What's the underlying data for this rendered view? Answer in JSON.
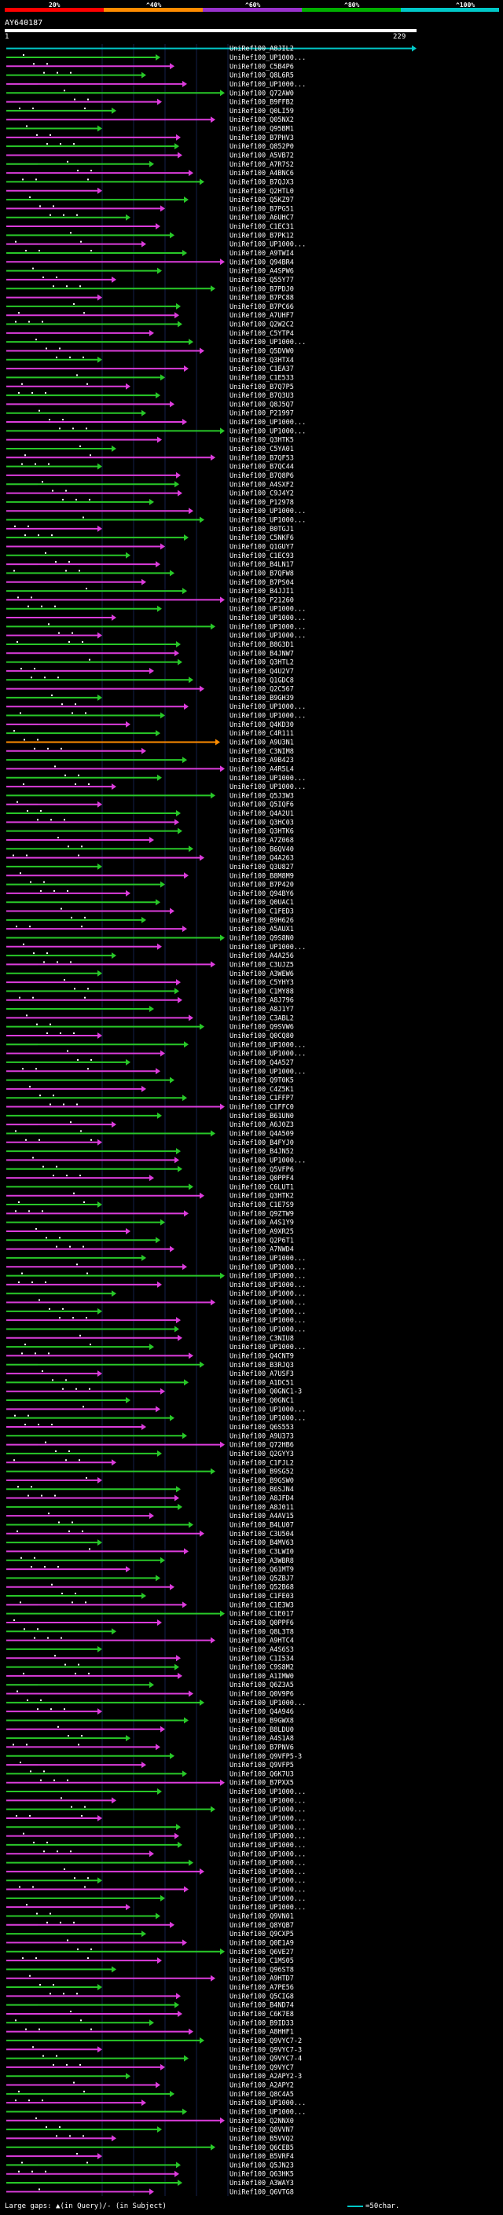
{
  "scale": {
    "labels": [
      "20%",
      "^40%",
      "^60%",
      "^80%",
      "^100%"
    ],
    "colors": [
      "#ff0000",
      "#ff8c00",
      "#9932cc",
      "#00b000",
      "#00c8c8"
    ]
  },
  "query": {
    "id": "AY640187",
    "start": "1",
    "end": "229"
  },
  "colors": {
    "green": "#28c828",
    "magenta": "#dc3cdc",
    "orange": "#ff8c00",
    "cyan": "#00c8c8",
    "dark": "#2a2a2a",
    "grid": "#15204a"
  },
  "hits": [
    {
      "id": "UniRef100_A8JIL2",
      "color": "cyan"
    },
    {
      "id": "UniRef100_UP1000...",
      "color": "green"
    },
    {
      "id": "UniRef100_C5B4P6",
      "color": "magenta"
    },
    {
      "id": "UniRef100_Q8L6R5",
      "color": "green"
    },
    {
      "id": "UniRef100_UP1000...",
      "color": "magenta"
    },
    {
      "id": "UniRef100_Q72AW0",
      "color": "green"
    },
    {
      "id": "UniRef100_B9FFB2",
      "color": "magenta"
    },
    {
      "id": "UniRef100_Q0LI59",
      "color": "green"
    },
    {
      "id": "UniRef100_Q05NX2",
      "color": "magenta"
    },
    {
      "id": "UniRef100_Q95BM1",
      "color": "green"
    },
    {
      "id": "UniRef100_B7PHV3",
      "color": "magenta"
    },
    {
      "id": "UniRef100_Q852P0",
      "color": "green"
    },
    {
      "id": "UniRef100_A5VB72",
      "color": "magenta"
    },
    {
      "id": "UniRef100_A7R7S2",
      "color": "green"
    },
    {
      "id": "UniRef100_A4BNC6",
      "color": "magenta"
    },
    {
      "id": "UniRef100_B7QJX3",
      "color": "green"
    },
    {
      "id": "UniRef100_Q2HTL0",
      "color": "magenta"
    },
    {
      "id": "UniRef100_Q5KZ97",
      "color": "green"
    },
    {
      "id": "UniRef100_B7PG51",
      "color": "magenta"
    },
    {
      "id": "UniRef100_A6UHC7",
      "color": "green"
    },
    {
      "id": "UniRef100_C1EC31",
      "color": "magenta"
    },
    {
      "id": "UniRef100_B7PK12",
      "color": "green"
    },
    {
      "id": "UniRef100_UP1000...",
      "color": "magenta"
    },
    {
      "id": "UniRef100_A9TWI4",
      "color": "green"
    },
    {
      "id": "UniRef100_Q94BR4",
      "color": "magenta"
    },
    {
      "id": "UniRef100_A4SPW6",
      "color": "green"
    },
    {
      "id": "UniRef100_Q55Y77",
      "color": "magenta"
    },
    {
      "id": "UniRef100_B7PDJ0",
      "color": "green"
    },
    {
      "id": "UniRef100_B7PC88",
      "color": "magenta"
    },
    {
      "id": "UniRef100_B7PC66",
      "color": "green"
    },
    {
      "id": "UniRef100_A7UHF7",
      "color": "magenta"
    },
    {
      "id": "UniRef100_Q2W2C2",
      "color": "green"
    },
    {
      "id": "UniRef100_C5YTP4",
      "color": "magenta"
    },
    {
      "id": "UniRef100_UP1000...",
      "color": "green"
    },
    {
      "id": "UniRef100_Q5DVW0",
      "color": "magenta"
    },
    {
      "id": "UniRef100_Q3HTX4",
      "color": "green"
    },
    {
      "id": "UniRef100_C1EA37",
      "color": "magenta"
    },
    {
      "id": "UniRef100_C1E533",
      "color": "green"
    },
    {
      "id": "UniRef100_B7Q7P5",
      "color": "magenta"
    },
    {
      "id": "UniRef100_B7Q3U3",
      "color": "green"
    },
    {
      "id": "UniRef100_Q8J5Q7",
      "color": "magenta"
    },
    {
      "id": "UniRef100_P21997",
      "color": "green"
    },
    {
      "id": "UniRef100_UP1000...",
      "color": "magenta"
    },
    {
      "id": "UniRef100_UP1000...",
      "color": "green"
    },
    {
      "id": "UniRef100_Q3HTK5",
      "color": "magenta"
    },
    {
      "id": "UniRef100_C5YA01",
      "color": "green"
    },
    {
      "id": "UniRef100_B7QF53",
      "color": "magenta"
    },
    {
      "id": "UniRef100_B7QC44",
      "color": "green"
    },
    {
      "id": "UniRef100_B7Q8P6",
      "color": "magenta"
    },
    {
      "id": "UniRef100_A4SXF2",
      "color": "green"
    },
    {
      "id": "UniRef100_C9J4Y2",
      "color": "magenta"
    },
    {
      "id": "UniRef100_P12978",
      "color": "green"
    },
    {
      "id": "UniRef100_UP1000...",
      "color": "magenta"
    },
    {
      "id": "UniRef100_UP1000...",
      "color": "green"
    },
    {
      "id": "UniRef100_B0TGJ1",
      "color": "magenta"
    },
    {
      "id": "UniRef100_C5NKF6",
      "color": "green"
    },
    {
      "id": "UniRef100_Q1GUY7",
      "color": "magenta"
    },
    {
      "id": "UniRef100_C1EC93",
      "color": "green"
    },
    {
      "id": "UniRef100_B4LN17",
      "color": "magenta"
    },
    {
      "id": "UniRef100_B7QFW8",
      "color": "green"
    },
    {
      "id": "UniRef100_B7PS04",
      "color": "magenta"
    },
    {
      "id": "UniRef100_B4JJI1",
      "color": "green"
    },
    {
      "id": "UniRef100_P21260",
      "color": "magenta"
    },
    {
      "id": "UniRef100_UP1000...",
      "color": "green"
    },
    {
      "id": "UniRef100_UP1000...",
      "color": "magenta"
    },
    {
      "id": "UniRef100_UP1000...",
      "color": "green"
    },
    {
      "id": "UniRef100_UP1000...",
      "color": "magenta"
    },
    {
      "id": "UniRef100_B8G3D1",
      "color": "green"
    },
    {
      "id": "UniRef100_B4JNW7",
      "color": "magenta"
    },
    {
      "id": "UniRef100_Q3HTL2",
      "color": "green"
    },
    {
      "id": "UniRef100_Q4U2V7",
      "color": "magenta"
    },
    {
      "id": "UniRef100_Q1GDC8",
      "color": "green"
    },
    {
      "id": "UniRef100_Q2C567",
      "color": "magenta"
    },
    {
      "id": "UniRef100_B9GH39",
      "color": "green"
    },
    {
      "id": "UniRef100_UP1000...",
      "color": "magenta"
    },
    {
      "id": "UniRef100_UP1000...",
      "color": "green"
    },
    {
      "id": "UniRef100_Q4KD30",
      "color": "magenta"
    },
    {
      "id": "UniRef100_C4R111",
      "color": "green"
    },
    {
      "id": "UniRef100_A9U3N1",
      "color": "orange"
    },
    {
      "id": "UniRef100_C3NIM8",
      "color": "magenta"
    },
    {
      "id": "UniRef100_A9B423",
      "color": "green"
    },
    {
      "id": "UniRef100_A4R5L4",
      "color": "magenta"
    },
    {
      "id": "UniRef100_UP1000...",
      "color": "green"
    },
    {
      "id": "UniRef100_UP1000...",
      "color": "magenta"
    },
    {
      "id": "UniRef100_Q5J3W3",
      "color": "green"
    },
    {
      "id": "UniRef100_Q5IQF6",
      "color": "magenta"
    },
    {
      "id": "UniRef100_Q4A2U1",
      "color": "green"
    },
    {
      "id": "UniRef100_Q3HC03",
      "color": "magenta"
    },
    {
      "id": "UniRef100_Q3HTK6",
      "color": "green"
    },
    {
      "id": "UniRef100_A7Z068",
      "color": "magenta"
    },
    {
      "id": "UniRef100_B6QV40",
      "color": "green"
    },
    {
      "id": "UniRef100_Q4A263",
      "color": "magenta"
    },
    {
      "id": "UniRef100_Q3U827",
      "color": "green"
    },
    {
      "id": "UniRef100_B8M8M9",
      "color": "magenta"
    },
    {
      "id": "UniRef100_B7P420",
      "color": "green"
    },
    {
      "id": "UniRef100_Q94BY6",
      "color": "magenta"
    },
    {
      "id": "UniRef100_Q0UAC1",
      "color": "green"
    },
    {
      "id": "UniRef100_C1FED3",
      "color": "magenta"
    },
    {
      "id": "UniRef100_B9H626",
      "color": "green"
    },
    {
      "id": "UniRef100_A5AUX1",
      "color": "magenta"
    },
    {
      "id": "UniRef100_Q9S8N0",
      "color": "green"
    },
    {
      "id": "UniRef100_UP1000...",
      "color": "magenta"
    },
    {
      "id": "UniRef100_A4A256",
      "color": "green"
    },
    {
      "id": "UniRef100_C3UJZ5",
      "color": "magenta"
    },
    {
      "id": "UniRef100_A3WEW6",
      "color": "green"
    },
    {
      "id": "UniRef100_C5YHY3",
      "color": "magenta"
    },
    {
      "id": "UniRef100_C1MY88",
      "color": "green"
    },
    {
      "id": "UniRef100_A8J796",
      "color": "magenta"
    },
    {
      "id": "UniRef100_A8J1Y7",
      "color": "green"
    },
    {
      "id": "UniRef100_C3ABL2",
      "color": "magenta"
    },
    {
      "id": "UniRef100_Q9SVW6",
      "color": "green"
    },
    {
      "id": "UniRef100_Q0CQ80",
      "color": "magenta"
    },
    {
      "id": "UniRef100_UP1000...",
      "color": "green"
    },
    {
      "id": "UniRef100_UP1000...",
      "color": "magenta"
    },
    {
      "id": "UniRef100_Q4A527",
      "color": "green"
    },
    {
      "id": "UniRef100_UP1000...",
      "color": "magenta"
    },
    {
      "id": "UniRef100_Q9T0K5",
      "color": "green"
    },
    {
      "id": "UniRef100_C4Z5K1",
      "color": "magenta"
    },
    {
      "id": "UniRef100_C1FFP7",
      "color": "green"
    },
    {
      "id": "UniRef100_C1FFC0",
      "color": "magenta"
    },
    {
      "id": "UniRef100_B61UN0",
      "color": "green"
    },
    {
      "id": "UniRef100_A6J0Z3",
      "color": "magenta"
    },
    {
      "id": "UniRef100_Q4A509",
      "color": "green"
    },
    {
      "id": "UniRef100_B4FYJ0",
      "color": "magenta"
    },
    {
      "id": "UniRef100_B4JN52",
      "color": "green"
    },
    {
      "id": "UniRef100_UP1000...",
      "color": "magenta"
    },
    {
      "id": "UniRef100_Q5VFP6",
      "color": "green"
    },
    {
      "id": "UniRef100_Q0PPF4",
      "color": "magenta"
    },
    {
      "id": "UniRef100_C6LUT1",
      "color": "green"
    },
    {
      "id": "UniRef100_Q3HTK2",
      "color": "magenta"
    },
    {
      "id": "UniRef100_C1E7S9",
      "color": "green"
    },
    {
      "id": "UniRef100_Q9ZTW9",
      "color": "magenta"
    },
    {
      "id": "UniRef100_A4S1Y9",
      "color": "green"
    },
    {
      "id": "UniRef100_A9XR25",
      "color": "magenta"
    },
    {
      "id": "UniRef100_Q2P6T1",
      "color": "green"
    },
    {
      "id": "UniRef100_A7NWD4",
      "color": "magenta"
    },
    {
      "id": "UniRef100_UP1000...",
      "color": "green"
    },
    {
      "id": "UniRef100_UP1000...",
      "color": "magenta"
    },
    {
      "id": "UniRef100_UP1000...",
      "color": "green"
    },
    {
      "id": "UniRef100_UP1000...",
      "color": "magenta"
    },
    {
      "id": "UniRef100_UP1000...",
      "color": "green"
    },
    {
      "id": "UniRef100_UP1000...",
      "color": "magenta"
    },
    {
      "id": "UniRef100_UP1000...",
      "color": "green"
    },
    {
      "id": "UniRef100_UP1000...",
      "color": "magenta"
    },
    {
      "id": "UniRef100_UP1000...",
      "color": "green"
    },
    {
      "id": "UniRef100_C3NIU8",
      "color": "magenta"
    },
    {
      "id": "UniRef100_UP1000...",
      "color": "green"
    },
    {
      "id": "UniRef100_Q4CNT9",
      "color": "magenta"
    },
    {
      "id": "UniRef100_B3RJQ3",
      "color": "green"
    },
    {
      "id": "UniRef100_A7USF3",
      "color": "magenta"
    },
    {
      "id": "UniRef100_A1DC51",
      "color": "green"
    },
    {
      "id": "UniRef100_Q0GNC1-3",
      "color": "magenta"
    },
    {
      "id": "UniRef100_Q0GNC1",
      "color": "green"
    },
    {
      "id": "UniRef100_UP1000...",
      "color": "magenta"
    },
    {
      "id": "UniRef100_UP1000...",
      "color": "green"
    },
    {
      "id": "UniRef100_Q6S553",
      "color": "magenta"
    },
    {
      "id": "UniRef100_A9U373",
      "color": "green"
    },
    {
      "id": "UniRef100_Q72HB6",
      "color": "magenta"
    },
    {
      "id": "UniRef100_Q2GYY3",
      "color": "green"
    },
    {
      "id": "UniRef100_C1FJL2",
      "color": "magenta"
    },
    {
      "id": "UniRef100_B9SG52",
      "color": "green"
    },
    {
      "id": "UniRef100_B9GSW0",
      "color": "magenta"
    },
    {
      "id": "UniRef100_B6SJN4",
      "color": "green"
    },
    {
      "id": "UniRef100_A8JFD4",
      "color": "magenta"
    },
    {
      "id": "UniRef100_A8J011",
      "color": "green"
    },
    {
      "id": "UniRef100_A4AV15",
      "color": "magenta"
    },
    {
      "id": "UniRef100_B4LU07",
      "color": "green"
    },
    {
      "id": "UniRef100_C3U504",
      "color": "magenta"
    },
    {
      "id": "UniRef100_B4MV63",
      "color": "green"
    },
    {
      "id": "UniRef100_C3LWI0",
      "color": "magenta"
    },
    {
      "id": "UniRef100_A3WBR8",
      "color": "green"
    },
    {
      "id": "UniRef100_Q61MT9",
      "color": "magenta"
    },
    {
      "id": "UniRef100_Q5ZBJ7",
      "color": "green"
    },
    {
      "id": "UniRef100_Q52B68",
      "color": "magenta"
    },
    {
      "id": "UniRef100_C1FE03",
      "color": "green"
    },
    {
      "id": "UniRef100_C1E3W3",
      "color": "magenta"
    },
    {
      "id": "UniRef100_C1E017",
      "color": "green"
    },
    {
      "id": "UniRef100_Q0PPF6",
      "color": "magenta"
    },
    {
      "id": "UniRef100_Q8L3T8",
      "color": "green"
    },
    {
      "id": "UniRef100_A9HTC4",
      "color": "magenta"
    },
    {
      "id": "UniRef100_A4S6S3",
      "color": "green"
    },
    {
      "id": "UniRef100_C1I534",
      "color": "magenta"
    },
    {
      "id": "UniRef100_C9S8M2",
      "color": "green"
    },
    {
      "id": "UniRef100_A1IMW0",
      "color": "magenta"
    },
    {
      "id": "UniRef100_Q6Z3A5",
      "color": "green"
    },
    {
      "id": "UniRef100_Q0V9P6",
      "color": "magenta"
    },
    {
      "id": "UniRef100_UP1000...",
      "color": "green"
    },
    {
      "id": "UniRef100_Q4A946",
      "color": "magenta"
    },
    {
      "id": "UniRef100_B9GWX8",
      "color": "green"
    },
    {
      "id": "UniRef100_B8LDU0",
      "color": "magenta"
    },
    {
      "id": "UniRef100_A4S1A8",
      "color": "green"
    },
    {
      "id": "UniRef100_B7PNV6",
      "color": "magenta"
    },
    {
      "id": "UniRef100_Q9VFP5-3",
      "color": "green"
    },
    {
      "id": "UniRef100_Q9VFP5",
      "color": "magenta"
    },
    {
      "id": "UniRef100_Q6K7U3",
      "color": "green"
    },
    {
      "id": "UniRef100_B7PXX5",
      "color": "magenta"
    },
    {
      "id": "UniRef100_UP1000...",
      "color": "green"
    },
    {
      "id": "UniRef100_UP1000...",
      "color": "magenta"
    },
    {
      "id": "UniRef100_UP1000...",
      "color": "green"
    },
    {
      "id": "UniRef100_UP1000...",
      "color": "magenta"
    },
    {
      "id": "UniRef100_UP1000...",
      "color": "green"
    },
    {
      "id": "UniRef100_UP1000...",
      "color": "magenta"
    },
    {
      "id": "UniRef100_UP1000...",
      "color": "green"
    },
    {
      "id": "UniRef100_UP1000...",
      "color": "magenta"
    },
    {
      "id": "UniRef100_UP1000...",
      "color": "green"
    },
    {
      "id": "UniRef100_UP1000...",
      "color": "magenta"
    },
    {
      "id": "UniRef100_UP1000...",
      "color": "green"
    },
    {
      "id": "UniRef100_UP1000...",
      "color": "magenta"
    },
    {
      "id": "UniRef100_UP1000...",
      "color": "green"
    },
    {
      "id": "UniRef100_UP1000...",
      "color": "magenta"
    },
    {
      "id": "UniRef100_Q9VN01",
      "color": "green"
    },
    {
      "id": "UniRef100_Q8YQB7",
      "color": "magenta"
    },
    {
      "id": "UniRef100_Q9CXP5",
      "color": "green"
    },
    {
      "id": "UniRef100_Q0E1A9",
      "color": "magenta"
    },
    {
      "id": "UniRef100_Q6VE27",
      "color": "green"
    },
    {
      "id": "UniRef100_C1MS05",
      "color": "magenta"
    },
    {
      "id": "UniRef100_Q96ST8",
      "color": "green"
    },
    {
      "id": "UniRef100_A9HTD7",
      "color": "magenta"
    },
    {
      "id": "UniRef100_A7PE56",
      "color": "green"
    },
    {
      "id": "UniRef100_Q5CIG8",
      "color": "magenta"
    },
    {
      "id": "UniRef100_B4ND74",
      "color": "green"
    },
    {
      "id": "UniRef100_C6K7E8",
      "color": "magenta"
    },
    {
      "id": "UniRef100_B9ID33",
      "color": "green"
    },
    {
      "id": "UniRef100_A8HHF1",
      "color": "magenta"
    },
    {
      "id": "UniRef100_Q9VYC7-2",
      "color": "green"
    },
    {
      "id": "UniRef100_Q9VYC7-3",
      "color": "magenta"
    },
    {
      "id": "UniRef100_Q9VYC7-4",
      "color": "green"
    },
    {
      "id": "UniRef100_Q9VYC7",
      "color": "magenta"
    },
    {
      "id": "UniRef100_A2APY2-3",
      "color": "green"
    },
    {
      "id": "UniRef100_A2APY2",
      "color": "magenta"
    },
    {
      "id": "UniRef100_Q8C4A5",
      "color": "green"
    },
    {
      "id": "UniRef100_UP1000...",
      "color": "magenta"
    },
    {
      "id": "UniRef100_UP1000...",
      "color": "green"
    },
    {
      "id": "UniRef100_Q2NNX0",
      "color": "magenta"
    },
    {
      "id": "UniRef100_Q8VVN7",
      "color": "green"
    },
    {
      "id": "UniRef100_B5VVQ2",
      "color": "magenta"
    },
    {
      "id": "UniRef100_Q6CEB5",
      "color": "green"
    },
    {
      "id": "UniRef100_B5VRF4",
      "color": "magenta"
    },
    {
      "id": "UniRef100_Q5JN23",
      "color": "green"
    },
    {
      "id": "UniRef100_Q63HK5",
      "color": "magenta"
    },
    {
      "id": "UniRef100_A3WAY3",
      "color": "green"
    },
    {
      "id": "UniRef100_Q6VTG8",
      "color": "magenta"
    }
  ],
  "legend": {
    "text": "Large gaps: ▲(in Query)/- (in Subject)",
    "scale_label": "=50char."
  }
}
